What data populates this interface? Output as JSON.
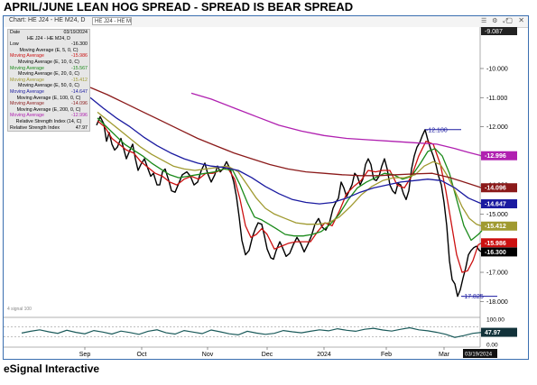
{
  "title": "APRIL/JUNE LEAN HOG SPREAD -   SPREAD IS BEAR SPREAD",
  "footer": "eSignal Interactive",
  "toolbar": {
    "label": "Chart: HE J24 - HE M24, D",
    "symbol_box": "HE J24 - HE M"
  },
  "legend": {
    "date_label": "Date",
    "date_value": "03/19/2024",
    "symbol_line": "HE J24 - HE M24, D",
    "low_label": "Low",
    "low_value": "-16.300",
    "rsi_label": "Relative Strength Index",
    "rsi_value": "47.97",
    "items": [
      {
        "head": "Moving Average (E, 5, 0, C)",
        "label": "Moving Average",
        "value": "-15.986",
        "color": "#cc1111"
      },
      {
        "head": "Moving Average (E, 10, 0, C)",
        "label": "Moving Average",
        "value": "-15.567",
        "color": "#1a8a1a"
      },
      {
        "head": "Moving Average (E, 20, 0, C)",
        "label": "Moving Average",
        "value": "-15.412",
        "color": "#a09a30"
      },
      {
        "head": "Moving Average (E, 50, 0, C)",
        "label": "Moving Average",
        "value": "-14.647",
        "color": "#1a1aa0"
      },
      {
        "head": "Moving Average (E, 100, 0, C)",
        "label": "Moving Average",
        "value": "-14.096",
        "color": "#8b1a1a"
      },
      {
        "head": "Moving Average (E, 200, 0, C)",
        "label": "Moving Average",
        "value": "-12.996",
        "color": "#b020b0"
      }
    ],
    "series_label": "Relative Strength Index (14, C)"
  },
  "chart_data": {
    "type": "line",
    "x_tick_labels": [
      "Sep",
      "Oct",
      "Nov",
      "Dec",
      "2024",
      "Feb",
      "Mar"
    ],
    "x_tick_pos": [
      90,
      153,
      226,
      292,
      355,
      424,
      488
    ],
    "date_badge": "03/19/2024",
    "ylim": [
      -18.3,
      -8.7
    ],
    "y_ticks": [
      -10.0,
      -11.0,
      -12.0,
      -13.0,
      -14.0,
      -15.0,
      -16.0,
      -17.0,
      -18.0
    ],
    "y_tick_labels": [
      "-10.000",
      "-11.000",
      "-12.000",
      "-13.000",
      "-14.000",
      "-15.000",
      "-16.000",
      "-17.000",
      "-18.000"
    ],
    "top_badge": "-9.087",
    "value_badges": [
      {
        "value": -12.996,
        "label": "-12.996",
        "color": "#b020b0"
      },
      {
        "value": -14.096,
        "label": "-14.096",
        "color": "#8b1a1a"
      },
      {
        "value": -14.647,
        "label": "-14.647",
        "color": "#1a1aa0"
      },
      {
        "value": -15.412,
        "label": "-15.412",
        "color": "#a09a30"
      },
      {
        "value": -15.986,
        "label": "-15.986",
        "color": "#cc1111"
      },
      {
        "value": -16.3,
        "label": "-16.300",
        "color": "#000000"
      }
    ],
    "annotations": [
      {
        "label": "-12.100",
        "value": -12.1,
        "x_from": 467
      },
      {
        "label": "-17.825",
        "value": -17.825,
        "x_from": 507
      }
    ],
    "lower_left_note": "4 signal 100",
    "series": [
      {
        "name": "HE J24 - HE M24",
        "color": "#000000",
        "x": [
          103,
          107,
          111,
          114,
          117,
          120,
          123,
          126,
          130,
          133,
          136,
          140,
          143,
          146,
          149,
          152,
          156,
          160,
          163,
          166,
          170,
          173,
          176,
          179,
          183,
          186,
          190,
          194,
          198,
          203,
          207,
          211,
          215,
          219,
          223,
          226,
          230,
          234,
          237,
          240,
          243,
          247,
          251,
          255,
          258,
          261,
          264,
          268,
          272,
          276,
          279,
          282,
          286,
          289,
          292,
          296,
          299,
          302,
          306,
          309,
          313,
          317,
          321,
          325,
          329,
          333,
          337,
          341,
          345,
          349,
          353,
          357,
          361,
          365,
          368,
          371,
          374,
          377,
          380,
          383,
          386,
          389,
          392,
          395,
          398,
          401,
          404,
          407,
          410,
          413,
          416,
          419,
          422,
          425,
          428,
          431,
          434,
          437,
          440,
          443,
          446,
          449,
          452,
          455,
          458,
          461,
          464,
          467,
          470,
          473,
          476,
          479,
          482,
          485,
          488,
          491,
          494,
          497,
          500,
          503,
          506,
          509,
          512,
          515,
          518,
          521,
          524,
          527,
          530
        ],
        "y": [
          -11.95,
          -11.65,
          -11.9,
          -12.5,
          -12.2,
          -12.6,
          -12.8,
          -12.7,
          -12.4,
          -12.75,
          -13.1,
          -12.8,
          -12.6,
          -13.1,
          -13.5,
          -13.3,
          -13.1,
          -13.45,
          -13.7,
          -13.6,
          -14.0,
          -14.0,
          -13.55,
          -13.45,
          -13.85,
          -14.2,
          -14.25,
          -13.95,
          -13.65,
          -13.55,
          -13.7,
          -14.0,
          -13.9,
          -13.5,
          -13.25,
          -13.6,
          -13.9,
          -13.65,
          -13.35,
          -13.55,
          -13.45,
          -13.2,
          -13.45,
          -13.9,
          -14.4,
          -15.1,
          -15.9,
          -16.4,
          -16.25,
          -15.75,
          -15.5,
          -15.3,
          -15.35,
          -15.75,
          -16.2,
          -16.5,
          -16.55,
          -16.25,
          -15.95,
          -16.15,
          -16.45,
          -16.35,
          -16.05,
          -15.8,
          -16.0,
          -16.3,
          -16.05,
          -15.75,
          -15.35,
          -15.15,
          -15.45,
          -15.55,
          -15.3,
          -14.8,
          -14.6,
          -14.45,
          -13.9,
          -14.1,
          -14.4,
          -14.2,
          -14.0,
          -13.6,
          -13.7,
          -14.0,
          -13.8,
          -13.3,
          -13.1,
          -13.3,
          -13.8,
          -13.85,
          -13.7,
          -13.35,
          -13.1,
          -13.45,
          -14.0,
          -14.2,
          -14.3,
          -13.95,
          -14.0,
          -14.3,
          -14.5,
          -14.2,
          -13.45,
          -13.0,
          -12.7,
          -12.55,
          -12.3,
          -12.1,
          -12.45,
          -12.75,
          -13.0,
          -13.3,
          -13.7,
          -14.0,
          -14.6,
          -15.4,
          -16.6,
          -17.25,
          -17.4,
          -17.825,
          -17.6,
          -17.2,
          -16.85,
          -16.4,
          -16.25,
          -16.15,
          -16.1,
          -16.25,
          -16.3
        ]
      },
      {
        "name": "MA 5",
        "color": "#cc1111",
        "x": [
          104,
          112,
          120,
          128,
          136,
          144,
          152,
          160,
          168,
          176,
          184,
          192,
          200,
          208,
          216,
          224,
          232,
          240,
          248,
          256,
          262,
          268,
          274,
          280,
          286,
          292,
          300,
          308,
          316,
          324,
          332,
          340,
          348,
          356,
          364,
          372,
          380,
          388,
          396,
          404,
          412,
          420,
          428,
          436,
          444,
          452,
          460,
          468,
          476,
          484,
          490,
          496,
          502,
          508,
          514,
          520,
          526,
          530
        ],
        "y": [
          -11.8,
          -12.0,
          -12.4,
          -12.6,
          -12.8,
          -12.9,
          -13.2,
          -13.4,
          -13.6,
          -13.7,
          -13.9,
          -14.0,
          -13.8,
          -13.7,
          -13.8,
          -13.6,
          -13.6,
          -13.5,
          -13.4,
          -13.8,
          -14.5,
          -15.4,
          -15.8,
          -15.7,
          -15.5,
          -15.7,
          -16.2,
          -16.1,
          -16.0,
          -15.95,
          -15.95,
          -15.95,
          -15.6,
          -15.3,
          -15.4,
          -14.9,
          -14.3,
          -14.05,
          -13.85,
          -13.5,
          -13.55,
          -13.5,
          -13.5,
          -14.0,
          -14.1,
          -13.7,
          -13.0,
          -12.5,
          -12.6,
          -13.3,
          -14.2,
          -15.3,
          -16.4,
          -17.0,
          -16.95,
          -16.6,
          -16.05,
          -15.99
        ]
      },
      {
        "name": "MA 10",
        "color": "#1a8a1a",
        "x": [
          104,
          114,
          124,
          134,
          144,
          154,
          164,
          174,
          184,
          194,
          204,
          214,
          224,
          234,
          244,
          254,
          262,
          270,
          278,
          286,
          294,
          302,
          312,
          322,
          332,
          342,
          352,
          362,
          372,
          382,
          392,
          402,
          412,
          422,
          432,
          442,
          452,
          462,
          470,
          478,
          486,
          494,
          502,
          510,
          518,
          526,
          530
        ],
        "y": [
          -11.7,
          -12.0,
          -12.3,
          -12.6,
          -12.8,
          -13.0,
          -13.25,
          -13.45,
          -13.65,
          -13.75,
          -13.7,
          -13.65,
          -13.6,
          -13.55,
          -13.45,
          -13.5,
          -14.0,
          -14.6,
          -15.1,
          -15.2,
          -15.35,
          -15.5,
          -15.7,
          -15.75,
          -15.75,
          -15.7,
          -15.6,
          -15.35,
          -15.0,
          -14.5,
          -14.1,
          -13.9,
          -13.75,
          -13.6,
          -13.65,
          -13.8,
          -13.7,
          -13.25,
          -12.85,
          -12.75,
          -13.0,
          -13.6,
          -14.5,
          -15.4,
          -15.9,
          -15.7,
          -15.57
        ]
      },
      {
        "name": "MA 20",
        "color": "#a09a30",
        "x": [
          104,
          116,
          128,
          140,
          152,
          164,
          176,
          188,
          200,
          212,
          224,
          236,
          248,
          260,
          270,
          280,
          290,
          300,
          312,
          324,
          336,
          348,
          360,
          372,
          384,
          396,
          408,
          420,
          432,
          444,
          456,
          466,
          476,
          484,
          492,
          500,
          508,
          516,
          524,
          530
        ],
        "y": [
          -11.5,
          -11.8,
          -12.1,
          -12.4,
          -12.7,
          -12.95,
          -13.15,
          -13.35,
          -13.45,
          -13.5,
          -13.45,
          -13.4,
          -13.35,
          -13.55,
          -14.0,
          -14.45,
          -14.8,
          -15.0,
          -15.15,
          -15.3,
          -15.35,
          -15.35,
          -15.3,
          -15.1,
          -14.75,
          -14.35,
          -14.05,
          -13.85,
          -13.75,
          -13.75,
          -13.65,
          -13.35,
          -13.2,
          -13.3,
          -13.7,
          -14.2,
          -14.75,
          -15.15,
          -15.35,
          -15.41
        ]
      },
      {
        "name": "MA 50",
        "color": "#1a1aa0",
        "x": [
          96,
          110,
          125,
          140,
          155,
          170,
          185,
          200,
          215,
          230,
          245,
          260,
          275,
          290,
          305,
          320,
          335,
          350,
          365,
          380,
          395,
          410,
          425,
          440,
          455,
          470,
          485,
          500,
          515,
          530
        ],
        "y": [
          -11.0,
          -11.35,
          -11.7,
          -12.0,
          -12.35,
          -12.65,
          -12.9,
          -13.1,
          -13.25,
          -13.35,
          -13.4,
          -13.5,
          -13.75,
          -14.05,
          -14.3,
          -14.5,
          -14.6,
          -14.65,
          -14.6,
          -14.45,
          -14.25,
          -14.1,
          -14.0,
          -13.9,
          -13.85,
          -13.8,
          -13.85,
          -14.1,
          -14.45,
          -14.65
        ]
      },
      {
        "name": "MA 100",
        "color": "#8b1a1a",
        "x": [
          96,
          115,
          135,
          155,
          175,
          195,
          215,
          235,
          255,
          275,
          295,
          315,
          335,
          355,
          375,
          395,
          415,
          435,
          455,
          475,
          495,
          515,
          530
        ],
        "y": [
          -10.65,
          -10.9,
          -11.2,
          -11.5,
          -11.8,
          -12.1,
          -12.4,
          -12.65,
          -12.9,
          -13.1,
          -13.3,
          -13.45,
          -13.55,
          -13.6,
          -13.65,
          -13.68,
          -13.68,
          -13.65,
          -13.62,
          -13.6,
          -13.75,
          -13.95,
          -14.1
        ]
      },
      {
        "name": "MA 200",
        "color": "#b020b0",
        "x": [
          208,
          230,
          255,
          280,
          305,
          330,
          355,
          380,
          405,
          430,
          455,
          480,
          500,
          515,
          530
        ],
        "y": [
          -10.85,
          -11.05,
          -11.35,
          -11.65,
          -11.95,
          -12.15,
          -12.3,
          -12.4,
          -12.45,
          -12.5,
          -12.55,
          -12.6,
          -12.75,
          -12.88,
          -13.0
        ]
      }
    ],
    "rsi": {
      "name": "Relative Strength Index (14, C)",
      "color": "#1a5a5a",
      "ylim": [
        0,
        100
      ],
      "y_ticks": [
        0,
        50,
        100
      ],
      "y_tick_labels": [
        "0.00",
        "50.00",
        "100.00"
      ],
      "last_label": "47.97",
      "x": [
        20,
        30,
        40,
        50,
        60,
        70,
        80,
        90,
        100,
        110,
        120,
        130,
        140,
        150,
        160,
        170,
        180,
        190,
        200,
        210,
        220,
        230,
        240,
        250,
        260,
        270,
        280,
        290,
        300,
        310,
        320,
        330,
        340,
        350,
        360,
        370,
        380,
        390,
        400,
        410,
        420,
        430,
        440,
        450,
        460,
        470,
        480,
        490,
        500,
        510,
        520,
        530
      ],
      "y": [
        45,
        52,
        58,
        50,
        44,
        56,
        48,
        42,
        55,
        49,
        41,
        53,
        47,
        40,
        52,
        58,
        46,
        41,
        55,
        49,
        43,
        57,
        50,
        42,
        38,
        52,
        45,
        40,
        44,
        55,
        50,
        46,
        52,
        58,
        54,
        62,
        56,
        52,
        60,
        64,
        57,
        53,
        60,
        66,
        58,
        54,
        48,
        40,
        28,
        35,
        44,
        48
      ]
    }
  }
}
